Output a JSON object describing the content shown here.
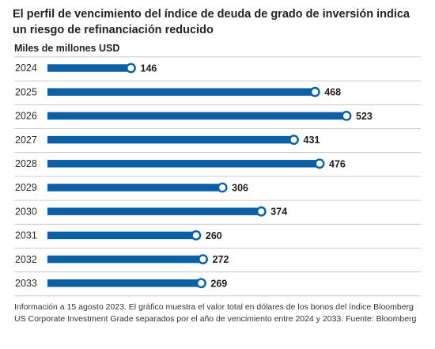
{
  "title": "El perfil de vencimiento del índice de deuda de grado de inversión indica un riesgo de refinanciación reducido",
  "unit_label": "Miles de millones USD",
  "footnote": "Información a 15 agosto 2023. El gráfico muestra el valor total en dólares de los bonos del índice Bloomberg US Corporate Investment Grade separados por el año de vencimiento entre 2024 y 2033. Fuente: Bloomberg",
  "colors": {
    "bar": "#0b5fa5",
    "gridline": "#bdbdbd",
    "marker_fill": "#ffffff"
  },
  "chart_data": {
    "type": "bar",
    "orientation": "horizontal",
    "title": "El perfil de vencimiento del índice de deuda de grado de inversión indica un riesgo de refinanciación reducido",
    "ylabel": "Miles de millones USD",
    "categories": [
      "2024",
      "2025",
      "2026",
      "2027",
      "2028",
      "2029",
      "2030",
      "2031",
      "2032",
      "2033"
    ],
    "values": [
      146,
      468,
      523,
      431,
      476,
      306,
      374,
      260,
      272,
      269
    ],
    "data_labels": [
      "146",
      "468",
      "523",
      "431",
      "476",
      "306",
      "374",
      "260",
      "272",
      "269"
    ],
    "xlim": [
      0,
      523
    ],
    "grid": false
  }
}
